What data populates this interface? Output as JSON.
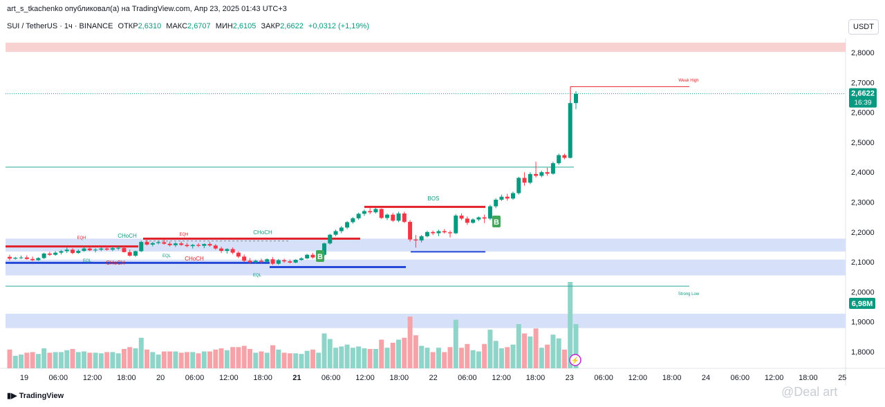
{
  "header": {
    "text": "art_s_tkachenko опубликовал(а) на TradingView.com, Апр 23, 2025 01:43 UTC+3"
  },
  "legend": {
    "symbol": "SUI / TetherUS · 1ч · BINANCE",
    "open_label": "ОТКР",
    "open": "2,6310",
    "high_label": "МАКС",
    "high": "2,6707",
    "low_label": "МИН",
    "low": "2,6105",
    "close_label": "ЗАКР",
    "close": "2,6622",
    "change": "+0,0312 (+1,19%)"
  },
  "currency": "USDT",
  "footer": {
    "brand": "TradingView"
  },
  "watermark": "@Deal art",
  "badges": {
    "price": "2,6622",
    "countdown": "16:39",
    "volume": "6,98M"
  },
  "chart_data": {
    "type": "candlestick",
    "x_ticks": [
      "19",
      "06:00",
      "12:00",
      "18:00",
      "20",
      "06:00",
      "12:00",
      "18:00",
      "21",
      "06:00",
      "12:00",
      "18:00",
      "22",
      "06:00",
      "12:00",
      "18:00",
      "23",
      "06:00",
      "12:00",
      "18:00",
      "24",
      "06:00",
      "12:00",
      "18:00",
      "25"
    ],
    "y_ticks": [
      "2,8000",
      "2,7000",
      "2,6000",
      "2,5000",
      "2,4000",
      "2,3000",
      "2,2000",
      "2,1000",
      "2,0000",
      "1,9000",
      "1,8000"
    ],
    "y_range": [
      1.76,
      2.86
    ],
    "candles": [
      [
        2.117,
        2.124,
        2.105,
        2.111
      ],
      [
        2.111,
        2.117,
        2.108,
        2.114
      ],
      [
        2.114,
        2.121,
        2.11,
        2.115
      ],
      [
        2.115,
        2.122,
        2.108,
        2.11
      ],
      [
        2.11,
        2.118,
        2.103,
        2.106
      ],
      [
        2.106,
        2.116,
        2.104,
        2.113
      ],
      [
        2.113,
        2.131,
        2.11,
        2.128
      ],
      [
        2.128,
        2.134,
        2.12,
        2.124
      ],
      [
        2.124,
        2.136,
        2.121,
        2.131
      ],
      [
        2.131,
        2.14,
        2.125,
        2.136
      ],
      [
        2.136,
        2.148,
        2.13,
        2.141
      ],
      [
        2.141,
        2.146,
        2.126,
        2.13
      ],
      [
        2.13,
        2.142,
        2.127,
        2.137
      ],
      [
        2.137,
        2.15,
        2.134,
        2.145
      ],
      [
        2.145,
        2.15,
        2.136,
        2.139
      ],
      [
        2.139,
        2.146,
        2.132,
        2.141
      ],
      [
        2.141,
        2.149,
        2.136,
        2.145
      ],
      [
        2.145,
        2.153,
        2.138,
        2.141
      ],
      [
        2.141,
        2.151,
        2.136,
        2.146
      ],
      [
        2.146,
        2.153,
        2.14,
        2.147
      ],
      [
        2.147,
        2.152,
        2.132,
        2.133
      ],
      [
        2.133,
        2.141,
        2.118,
        2.121
      ],
      [
        2.121,
        2.138,
        2.117,
        2.136
      ],
      [
        2.136,
        2.171,
        2.133,
        2.167
      ],
      [
        2.167,
        2.174,
        2.155,
        2.158
      ],
      [
        2.158,
        2.167,
        2.152,
        2.163
      ],
      [
        2.163,
        2.17,
        2.159,
        2.166
      ],
      [
        2.166,
        2.174,
        2.158,
        2.161
      ],
      [
        2.161,
        2.168,
        2.152,
        2.156
      ],
      [
        2.156,
        2.166,
        2.15,
        2.162
      ],
      [
        2.162,
        2.168,
        2.154,
        2.157
      ],
      [
        2.157,
        2.164,
        2.149,
        2.153
      ],
      [
        2.153,
        2.16,
        2.145,
        2.157
      ],
      [
        2.157,
        2.163,
        2.15,
        2.154
      ],
      [
        2.154,
        2.162,
        2.146,
        2.16
      ],
      [
        2.16,
        2.167,
        2.151,
        2.155
      ],
      [
        2.155,
        2.16,
        2.141,
        2.145
      ],
      [
        2.145,
        2.151,
        2.13,
        2.137
      ],
      [
        2.137,
        2.146,
        2.128,
        2.143
      ],
      [
        2.143,
        2.149,
        2.126,
        2.131
      ],
      [
        2.131,
        2.136,
        2.113,
        2.118
      ],
      [
        2.118,
        2.125,
        2.1,
        2.104
      ],
      [
        2.104,
        2.113,
        2.093,
        2.099
      ],
      [
        2.099,
        2.108,
        2.094,
        2.104
      ],
      [
        2.104,
        2.111,
        2.095,
        2.101
      ],
      [
        2.101,
        2.112,
        2.098,
        2.109
      ],
      [
        2.109,
        2.116,
        2.09,
        2.094
      ],
      [
        2.094,
        2.11,
        2.091,
        2.106
      ],
      [
        2.106,
        2.111,
        2.097,
        2.102
      ],
      [
        2.102,
        2.108,
        2.095,
        2.098
      ],
      [
        2.098,
        2.109,
        2.096,
        2.107
      ],
      [
        2.107,
        2.116,
        2.104,
        2.112
      ],
      [
        2.112,
        2.127,
        2.11,
        2.124
      ],
      [
        2.124,
        2.13,
        2.111,
        2.115
      ],
      [
        2.115,
        2.127,
        2.113,
        2.124
      ],
      [
        2.124,
        2.165,
        2.12,
        2.162
      ],
      [
        2.162,
        2.194,
        2.158,
        2.191
      ],
      [
        2.191,
        2.208,
        2.186,
        2.203
      ],
      [
        2.203,
        2.22,
        2.196,
        2.215
      ],
      [
        2.215,
        2.237,
        2.21,
        2.233
      ],
      [
        2.233,
        2.25,
        2.228,
        2.246
      ],
      [
        2.246,
        2.265,
        2.241,
        2.261
      ],
      [
        2.261,
        2.275,
        2.254,
        2.27
      ],
      [
        2.27,
        2.28,
        2.26,
        2.266
      ],
      [
        2.266,
        2.282,
        2.262,
        2.277
      ],
      [
        2.277,
        2.279,
        2.244,
        2.247
      ],
      [
        2.247,
        2.262,
        2.24,
        2.258
      ],
      [
        2.258,
        2.264,
        2.234,
        2.238
      ],
      [
        2.238,
        2.268,
        2.233,
        2.262
      ],
      [
        2.262,
        2.268,
        2.23,
        2.234
      ],
      [
        2.234,
        2.24,
        2.168,
        2.175
      ],
      [
        2.175,
        2.19,
        2.148,
        2.172
      ],
      [
        2.172,
        2.19,
        2.165,
        2.186
      ],
      [
        2.186,
        2.204,
        2.182,
        2.2
      ],
      [
        2.2,
        2.205,
        2.19,
        2.196
      ],
      [
        2.196,
        2.208,
        2.186,
        2.203
      ],
      [
        2.203,
        2.21,
        2.195,
        2.199
      ],
      [
        2.199,
        2.205,
        2.182,
        2.196
      ],
      [
        2.196,
        2.26,
        2.193,
        2.255
      ],
      [
        2.255,
        2.262,
        2.24,
        2.245
      ],
      [
        2.245,
        2.252,
        2.224,
        2.231
      ],
      [
        2.231,
        2.246,
        2.228,
        2.242
      ],
      [
        2.242,
        2.252,
        2.236,
        2.249
      ],
      [
        2.249,
        2.258,
        2.23,
        2.245
      ],
      [
        2.245,
        2.291,
        2.24,
        2.286
      ],
      [
        2.286,
        2.313,
        2.28,
        2.308
      ],
      [
        2.308,
        2.325,
        2.304,
        2.318
      ],
      [
        2.318,
        2.328,
        2.305,
        2.312
      ],
      [
        2.312,
        2.335,
        2.308,
        2.33
      ],
      [
        2.33,
        2.385,
        2.325,
        2.381
      ],
      [
        2.381,
        2.4,
        2.355,
        2.365
      ],
      [
        2.365,
        2.4,
        2.36,
        2.394
      ],
      [
        2.394,
        2.435,
        2.382,
        2.388
      ],
      [
        2.388,
        2.405,
        2.383,
        2.4
      ],
      [
        2.4,
        2.415,
        2.388,
        2.395
      ],
      [
        2.395,
        2.435,
        2.392,
        2.43
      ],
      [
        2.43,
        2.462,
        2.425,
        2.457
      ],
      [
        2.457,
        2.462,
        2.443,
        2.448
      ],
      [
        2.448,
        2.64,
        2.446,
        2.631
      ],
      [
        2.631,
        2.671,
        2.611,
        2.662
      ]
    ],
    "volume_ticks": 6.98,
    "annotations": {
      "weak_high": "Weak High",
      "strong_low": "Strong Low",
      "bos": "BOS",
      "choch_1": "CHoCH",
      "choch_2": "CHoCH",
      "choch_3": "CHoCH",
      "choch_4": "CHoCH",
      "eqh_1": "EQH",
      "eqh_2": "EQH",
      "eql_1": "EQL",
      "eql_2": "EQL",
      "eql_3": "EQL",
      "buy_1": "B",
      "buy_2": "B"
    },
    "levels": {
      "weak_high": 2.686,
      "strong_low": 2.019,
      "last_price": 2.6622,
      "green_line": 2.417
    },
    "zones": [
      {
        "from": 2.802,
        "to": 2.833,
        "color": "#f7c9c9"
      },
      {
        "from": 2.135,
        "to": 2.178,
        "color": "#cfdcf8"
      },
      {
        "from": 2.055,
        "to": 2.108,
        "color": "#cfdcf8"
      },
      {
        "from": 1.879,
        "to": 1.927,
        "color": "#cfdcf8"
      }
    ],
    "colors": {
      "up": "#089981",
      "down": "#f23645",
      "vol_up": "#8fd4c8",
      "vol_down": "#f5a3a8",
      "swing_red": "#e2202a",
      "swing_blue": "#2348d8"
    }
  }
}
